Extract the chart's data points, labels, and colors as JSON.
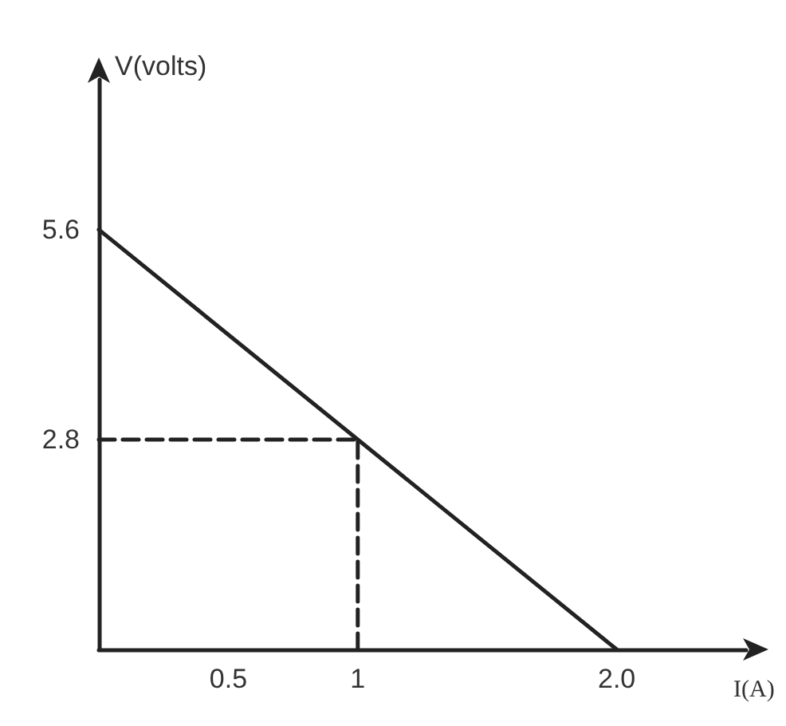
{
  "chart_data": {
    "type": "line",
    "xlabel": "I(A)",
    "ylabel": "V(volts)",
    "xlim": [
      0,
      2.5
    ],
    "ylim": [
      0,
      7.6
    ],
    "xticks": [
      0.5,
      1,
      {
        "value": 2,
        "label": "2.0"
      }
    ],
    "yticks": [
      2.8,
      5.6
    ],
    "grid": false,
    "marker": "none",
    "series": [
      {
        "color": "#222222",
        "x": [
          0,
          2
        ],
        "values": [
          5.6,
          0
        ],
        "line_style": "solid"
      },
      {
        "color": "#222222",
        "x": [
          0,
          1
        ],
        "values": [
          2.8,
          2.8
        ],
        "line_style": "dashed"
      },
      {
        "color": "#222222",
        "x": [
          1,
          1
        ],
        "values": [
          0,
          2.8
        ],
        "line_style": "dashed"
      }
    ]
  }
}
